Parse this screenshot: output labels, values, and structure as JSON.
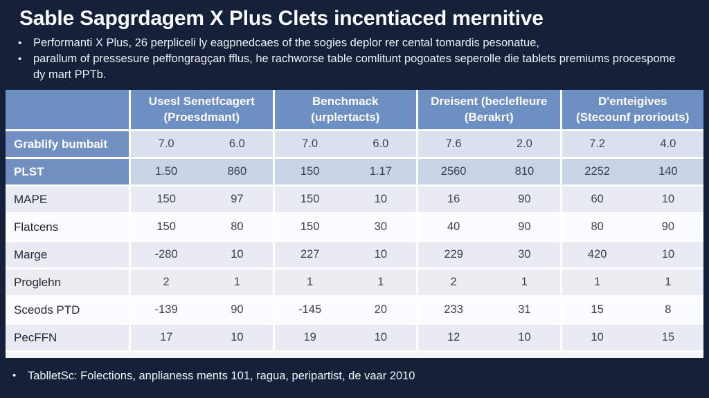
{
  "page": {
    "title": "Sable Sapgrdagem X Plus Clets incentiaced mernitive",
    "bullet_char": "•",
    "bullets": [
      "Performanti X Plus, 26 perpliceli ly eagpnedcaes of the sogies deplor rer cental tomardis pesonatue,",
      "parallum of pressesure peffongragçan fflus, he rachworse table comlitunt pogoates seperolle die tablets premiums procespome dy mart PPTb."
    ],
    "footer": "TablletSc: Folections, anplianess ments 101, ragua, peripartist, de vaar 2010"
  },
  "table_headers": [
    {
      "line1": "",
      "line2": ""
    },
    {
      "line1": "Usesl Senetfcagert",
      "line2": "(Proesdmant)"
    },
    {
      "line1": "Benchmack",
      "line2": "(urplertacts)"
    },
    {
      "line1": "Dreisent (beclefleure",
      "line2": "(Berakrt)"
    },
    {
      "line1": "D'enteigives",
      "line2": "(Stecounf proriouts)"
    }
  ],
  "chart_data": {
    "type": "table",
    "columns": [
      "",
      "Usesl Senetfcagert (Proesdmant)",
      "Benchmack (urplertacts)",
      "Dreisent (beclefleure (Berakrt)",
      "D'enteigives (Stecounf proriouts)"
    ],
    "rows": [
      {
        "label": "Grablify bumbait",
        "values": [
          "7.0",
          "6.0",
          "7.0",
          "6.0",
          "7.6",
          "2.0",
          "7.2",
          "4.0"
        ]
      },
      {
        "label": "PLST",
        "values": [
          "1.50",
          "860",
          "150",
          "1.17",
          "2560",
          "810",
          "2252",
          "140"
        ]
      },
      {
        "label": "MAPE",
        "values": [
          "150",
          "97",
          "150",
          "10",
          "16",
          "90",
          "60",
          "10"
        ]
      },
      {
        "label": "Flatcens",
        "values": [
          "150",
          "80",
          "150",
          "30",
          "40",
          "90",
          "80",
          "90"
        ]
      },
      {
        "label": "Marge",
        "values": [
          "-280",
          "10",
          "227",
          "10",
          "229",
          "30",
          "420",
          "10"
        ]
      },
      {
        "label": "Proglehn",
        "values": [
          "2",
          "1",
          "1",
          "1",
          "2",
          "1",
          "1",
          "1"
        ]
      },
      {
        "label": "Sceods PTD",
        "values": [
          "-139",
          "90",
          "-145",
          "20",
          "233",
          "31",
          "15",
          "8"
        ]
      },
      {
        "label": "PecFFN",
        "values": [
          "17",
          "10",
          "19",
          "10",
          "12",
          "10",
          "10",
          "15"
        ]
      }
    ]
  },
  "table_style": {
    "label_styles": [
      "blue",
      "blue",
      "plain",
      "plain",
      "plain",
      "plain",
      "plain",
      "plain"
    ],
    "row_bgs": [
      "#dbe2ee",
      "#c8d3e5",
      "#e8ebf2",
      "#fbfcfd",
      "#e8ebf2",
      "#ebedf3",
      "#fbfcfd",
      "#e8ebf2"
    ]
  },
  "colors": {
    "background": "#152039",
    "header_blue": "#6e8fc1",
    "label_blue": "#7191c2",
    "grid_line": "#ffffff"
  }
}
